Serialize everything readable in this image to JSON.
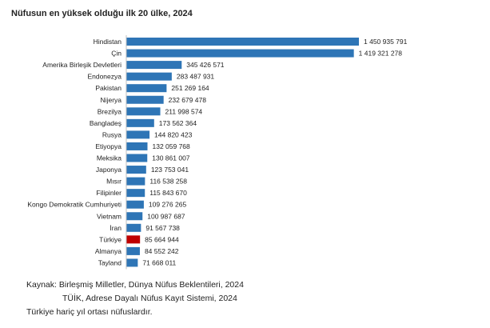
{
  "chart_data": {
    "type": "bar",
    "orientation": "horizontal",
    "title": "Nüfusun en yüksek olduğu ilk 20 ülke, 2024",
    "categories": [
      "Hindistan",
      "Çin",
      "Amerika Birleşik Devletleri",
      "Endonezya",
      "Pakistan",
      "Nijerya",
      "Brezilya",
      "Bangladeş",
      "Rusya",
      "Etiyopya",
      "Meksika",
      "Japonya",
      "Mısır",
      "Filipinler",
      "Kongo Demokratik Cumhuriyeti",
      "Vietnam",
      "İran",
      "Türkiye",
      "Almanya",
      "Tayland"
    ],
    "values": [
      1450935791,
      1419321278,
      345426571,
      283487931,
      251269164,
      232679478,
      211998574,
      173562364,
      144820423,
      132059768,
      130861007,
      123753041,
      116538258,
      115843670,
      109276265,
      100987687,
      91567738,
      85664944,
      84552242,
      71668011
    ],
    "value_labels": [
      "1 450 935 791",
      "1 419 321 278",
      "345 426 571",
      "283 487 931",
      "251 269 164",
      "232 679 478",
      "211 998 574",
      "173 562 364",
      "144 820 423",
      "132 059 768",
      "130 861 007",
      "123 753 041",
      "116 538 258",
      "115 843 670",
      "109 276 265",
      "100 987 687",
      "91 567 738",
      "85 664 944",
      "84 552 242",
      "71 668 011"
    ],
    "xlim": [
      0,
      1450935791
    ],
    "grid": false,
    "colors": {
      "default": "#2e75b6",
      "highlight": "#c00000"
    },
    "highlight_category": "Türkiye"
  },
  "footnotes": {
    "source_line1": "Kaynak: Birleşmiş Milletler, Dünya Nüfus Beklentileri, 2024",
    "source_line2": "TÜİK, Adrese Dayalı Nüfus Kayıt Sistemi, 2024",
    "note": "Türkiye hariç yıl ortası nüfuslardır."
  }
}
